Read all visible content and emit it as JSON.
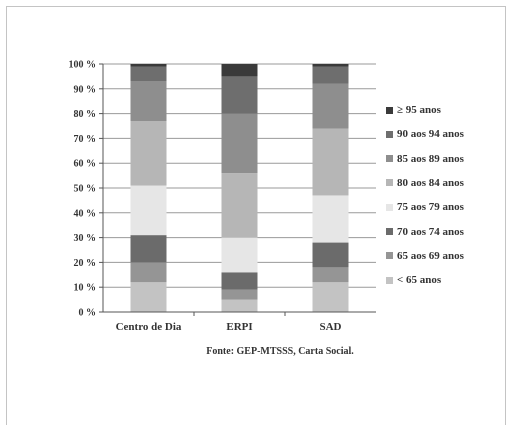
{
  "chart_data": {
    "type": "bar",
    "stacked": true,
    "categories": [
      "Centro de Dia",
      "ERPI",
      "SAD"
    ],
    "y_tick_labels": [
      "0 %",
      "10 %",
      "20 %",
      "30 %",
      "40 %",
      "50 %",
      "60 %",
      "70 %",
      "80 %",
      "90 %",
      "100 %"
    ],
    "ylim": [
      0,
      100
    ],
    "grid": true,
    "legend_position": "right",
    "series": [
      {
        "name": "< 65 anos",
        "color": "#c3c3c3",
        "values": [
          12,
          5,
          12
        ]
      },
      {
        "name": "65 aos 69 anos",
        "color": "#959595",
        "values": [
          8,
          4,
          6
        ]
      },
      {
        "name": "70 aos 74 anos",
        "color": "#6b6b6b",
        "values": [
          11,
          7,
          10
        ]
      },
      {
        "name": "75 aos 79 anos",
        "color": "#e6e6e6",
        "values": [
          20,
          14,
          19
        ]
      },
      {
        "name": "80 aos 84 anos",
        "color": "#b6b6b6",
        "values": [
          26,
          26,
          27
        ]
      },
      {
        "name": "85 aos 89 anos",
        "color": "#8e8e8e",
        "values": [
          16,
          24,
          18
        ]
      },
      {
        "name": "90 aos 94 anos",
        "color": "#6e6e6e",
        "values": [
          6,
          15,
          7
        ]
      },
      {
        "name": "≥ 95  anos",
        "color": "#3a3a3a",
        "values": [
          1,
          5,
          1
        ]
      }
    ],
    "source": "Fonte: GEP-MTSSS, Carta Social."
  }
}
